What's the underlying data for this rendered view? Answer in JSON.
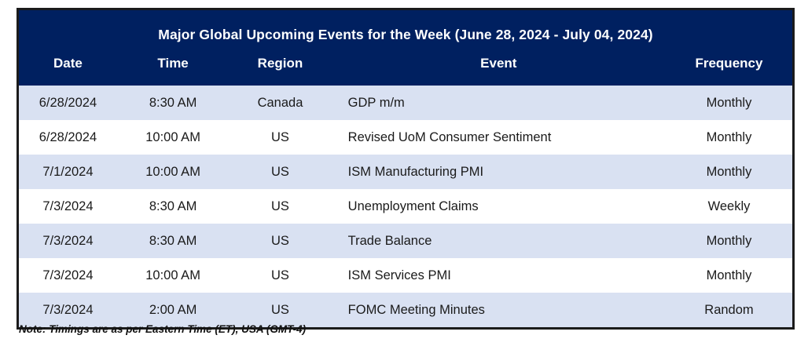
{
  "table": {
    "title": "Major Global Upcoming Events for the Week (June 28, 2024 - July 04, 2024)",
    "columns": [
      "Date",
      "Time",
      "Region",
      "Event",
      "Frequency"
    ],
    "rows": [
      [
        "6/28/2024",
        "8:30 AM",
        "Canada",
        "GDP m/m",
        "Monthly"
      ],
      [
        "6/28/2024",
        "10:00 AM",
        "US",
        "Revised UoM Consumer Sentiment",
        "Monthly"
      ],
      [
        "7/1/2024",
        "10:00 AM",
        "US",
        "ISM Manufacturing PMI",
        "Monthly"
      ],
      [
        "7/3/2024",
        "8:30 AM",
        "US",
        "Unemployment Claims",
        "Weekly"
      ],
      [
        "7/3/2024",
        "8:30 AM",
        "US",
        "Trade Balance",
        "Monthly"
      ],
      [
        "7/3/2024",
        "10:00 AM",
        "US",
        "ISM Services PMI",
        "Monthly"
      ],
      [
        "7/3/2024",
        "2:00 AM",
        "US",
        "FOMC Meeting Minutes",
        "Random"
      ]
    ],
    "note": "Note: Timings are as per Eastern Time (ET), USA (GMT-4)"
  },
  "colors": {
    "header_bg": "#002060",
    "header_text": "#ffffff",
    "row_alt_bg": "#d9e1f2",
    "row_bg": "#ffffff",
    "body_text": "#1a1a1a",
    "border": "#1b1b1b"
  },
  "chart_data": {
    "type": "table",
    "title": "Major Global Upcoming Events for the Week (June 28, 2024 - July 04, 2024)",
    "columns": [
      "Date",
      "Time",
      "Region",
      "Event",
      "Frequency"
    ],
    "rows": [
      [
        "6/28/2024",
        "8:30 AM",
        "Canada",
        "GDP m/m",
        "Monthly"
      ],
      [
        "6/28/2024",
        "10:00 AM",
        "US",
        "Revised UoM Consumer Sentiment",
        "Monthly"
      ],
      [
        "7/1/2024",
        "10:00 AM",
        "US",
        "ISM Manufacturing PMI",
        "Monthly"
      ],
      [
        "7/3/2024",
        "8:30 AM",
        "US",
        "Unemployment Claims",
        "Weekly"
      ],
      [
        "7/3/2024",
        "8:30 AM",
        "US",
        "Trade Balance",
        "Monthly"
      ],
      [
        "7/3/2024",
        "10:00 AM",
        "US",
        "ISM Services PMI",
        "Monthly"
      ],
      [
        "7/3/2024",
        "2:00 AM",
        "US",
        "FOMC Meeting Minutes",
        "Random"
      ]
    ],
    "footnote": "Note: Timings are as per Eastern Time (ET), USA (GMT-4)"
  }
}
